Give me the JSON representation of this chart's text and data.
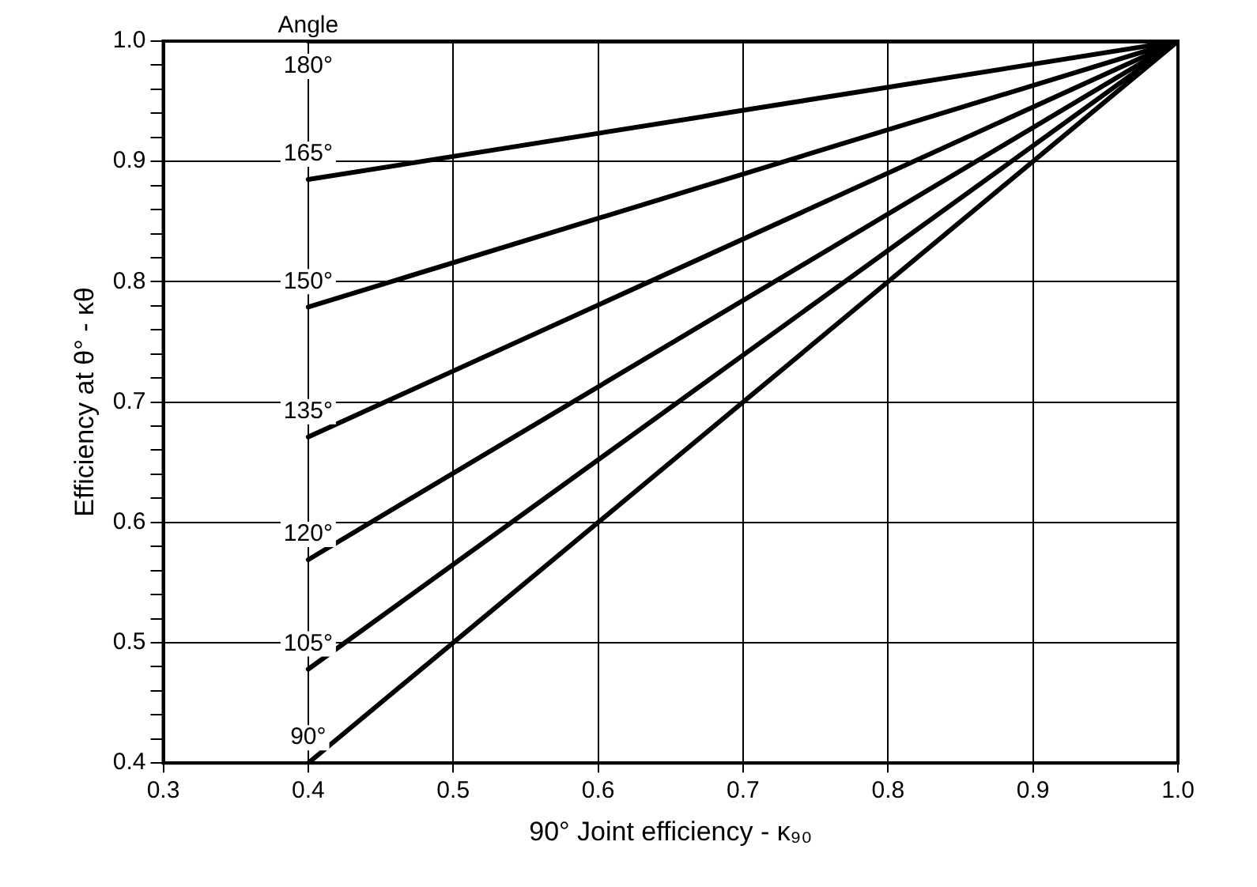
{
  "chart_data": {
    "type": "line",
    "xlabel": "90° Joint efficiency - κ₉₀",
    "ylabel": "Efficiency at θ° - κθ",
    "legend_title": "Angle",
    "xlim": [
      0.3,
      1.0
    ],
    "xticks": [
      0.3,
      0.4,
      0.5,
      0.6,
      0.7,
      0.8,
      0.9,
      {
        "value": 1.0,
        "label": "1.0"
      }
    ],
    "ylim": [
      0.4,
      1.0
    ],
    "yticks": [
      0.4,
      {
        "value": 0.42,
        "label": null
      },
      {
        "value": 0.44,
        "label": null
      },
      {
        "value": 0.46,
        "label": null
      },
      {
        "value": 0.48,
        "label": null
      },
      0.5,
      {
        "value": 0.52,
        "label": null
      },
      {
        "value": 0.54,
        "label": null
      },
      {
        "value": 0.56,
        "label": null
      },
      {
        "value": 0.58,
        "label": null
      },
      0.6,
      {
        "value": 0.62,
        "label": null
      },
      {
        "value": 0.64,
        "label": null
      },
      {
        "value": 0.66,
        "label": null
      },
      {
        "value": 0.68,
        "label": null
      },
      0.7,
      {
        "value": 0.72,
        "label": null
      },
      {
        "value": 0.74,
        "label": null
      },
      {
        "value": 0.76,
        "label": null
      },
      {
        "value": 0.78,
        "label": null
      },
      0.8,
      {
        "value": 0.82,
        "label": null
      },
      {
        "value": 0.84,
        "label": null
      },
      {
        "value": 0.86,
        "label": null
      },
      {
        "value": 0.88,
        "label": null
      },
      0.9,
      {
        "value": 0.92,
        "label": null
      },
      {
        "value": 0.94,
        "label": null
      },
      {
        "value": 0.96,
        "label": null
      },
      {
        "value": 0.98,
        "label": null
      },
      {
        "value": 1.0,
        "label": "1.0"
      }
    ],
    "grid": true,
    "legend": false,
    "x": [
      0.4,
      1.0
    ],
    "marker": "none",
    "line_style": "solid",
    "series": [
      {
        "name": "180°",
        "color": "#000000",
        "values": [
          1.0,
          1.0
        ]
      },
      {
        "name": "165°",
        "color": "#000000",
        "values": [
          0.885,
          1.0
        ]
      },
      {
        "name": "150°",
        "color": "#000000",
        "values": [
          0.779,
          1.0
        ]
      },
      {
        "name": "135°",
        "color": "#000000",
        "values": [
          0.671,
          1.0
        ]
      },
      {
        "name": "120°",
        "color": "#000000",
        "values": [
          0.569,
          1.0
        ]
      },
      {
        "name": "105°",
        "color": "#000000",
        "values": [
          0.478,
          1.0
        ]
      },
      {
        "name": "90°",
        "color": "#000000",
        "values": [
          0.4,
          1.0
        ]
      }
    ]
  }
}
